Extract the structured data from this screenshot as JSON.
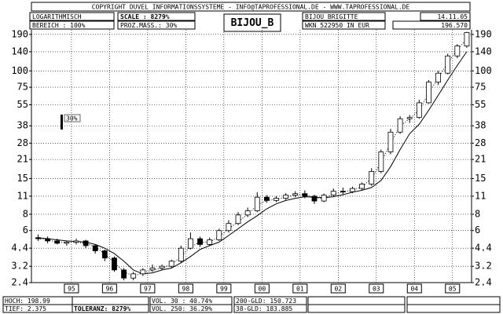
{
  "header": {
    "copyright": "COPYRIGHT  DUVEL INFORMATIONSSYSTEME - INFO@TAPROFESSIONAL.DE - WWW.TAPROFESSIONAL.DE",
    "mode": "LOGARITHMISCH",
    "range": "BEREICH :   100%",
    "scale": "SCALE : 8279%",
    "percent": "PROZ.MASS.: 30%",
    "name": "BIJOU BRIGITTE",
    "wkn": "WKN 522950   IN EUR",
    "date": "14.11.05",
    "last": "196.570"
  },
  "footer": {
    "high": "HOCH:  198.99",
    "low": "TIEF:  2.375",
    "tolerance": "TOLERANZ:  8279%",
    "vol30": "VOL. 30 : 40.74%",
    "vol250": "VOL. 250: 36.29%",
    "gld200": "200-GLD: 150.723",
    "gld38": "38-GLD: 183.885"
  },
  "chart_data": {
    "type": "candlestick",
    "title": "BIJOU_B",
    "log_scale": true,
    "grid": true,
    "scale_bar": {
      "value": 30,
      "label": "30%"
    },
    "x": [
      1994.625,
      1994.875,
      1995.125,
      1995.375,
      1995.625,
      1995.875,
      1996.125,
      1996.375,
      1996.625,
      1996.875,
      1997.125,
      1997.375,
      1997.625,
      1997.875,
      1998.125,
      1998.375,
      1998.625,
      1998.875,
      1999.125,
      1999.375,
      1999.625,
      1999.875,
      2000.125,
      2000.375,
      2000.625,
      2000.875,
      2001.125,
      2001.375,
      2001.625,
      2001.875,
      2002.125,
      2002.375,
      2002.625,
      2002.875,
      2003.125,
      2003.375,
      2003.625,
      2003.875,
      2004.125,
      2004.375,
      2004.625,
      2004.875,
      2005.125,
      2005.375,
      2005.625,
      2005.875
    ],
    "open": [
      5.3,
      5.2,
      5.0,
      4.8,
      4.9,
      5.0,
      4.6,
      4.2,
      3.7,
      3.0,
      2.6,
      2.8,
      3.0,
      3.1,
      3.2,
      3.5,
      4.4,
      5.2,
      4.7,
      5.1,
      6.0,
      6.8,
      7.9,
      8.5,
      10.8,
      10.2,
      10.6,
      11.2,
      11.5,
      11.0,
      10.1,
      11.2,
      12.0,
      11.9,
      12.6,
      13.6,
      17.0,
      24.0,
      34.0,
      43.0,
      44.0,
      57.0,
      82.0,
      96.0,
      130.0,
      155.0
    ],
    "high": [
      5.6,
      5.4,
      5.2,
      5.0,
      5.2,
      5.1,
      4.7,
      4.3,
      3.8,
      3.1,
      2.9,
      3.1,
      3.3,
      3.3,
      3.6,
      4.6,
      5.8,
      5.4,
      5.3,
      6.2,
      7.2,
      8.3,
      9.0,
      11.8,
      11.2,
      11.0,
      11.6,
      12.0,
      12.2,
      11.3,
      11.5,
      12.6,
      12.8,
      13.0,
      14.0,
      18.0,
      25.0,
      36.0,
      45.0,
      46.0,
      60.0,
      85.0,
      100.0,
      135.0,
      160.0,
      198.99
    ],
    "low": [
      5.0,
      4.8,
      4.7,
      4.6,
      4.7,
      4.4,
      4.0,
      3.5,
      2.9,
      2.5,
      2.5,
      2.7,
      2.9,
      3.0,
      3.1,
      3.4,
      4.3,
      4.5,
      4.6,
      5.0,
      5.8,
      6.6,
      7.6,
      8.3,
      9.8,
      9.9,
      10.3,
      10.8,
      10.6,
      9.6,
      9.9,
      11.0,
      11.4,
      11.6,
      12.2,
      13.2,
      16.5,
      23.0,
      33.0,
      40.0,
      43.0,
      56.0,
      78.0,
      94.0,
      125.0,
      150.0
    ],
    "close": [
      5.2,
      5.0,
      4.8,
      4.9,
      5.0,
      4.6,
      4.2,
      3.7,
      3.0,
      2.6,
      2.8,
      3.0,
      3.1,
      3.2,
      3.5,
      4.4,
      5.2,
      4.7,
      5.1,
      6.0,
      6.8,
      7.9,
      8.5,
      10.8,
      10.2,
      10.6,
      11.2,
      11.5,
      11.0,
      10.1,
      11.2,
      12.0,
      11.9,
      12.6,
      13.6,
      17.0,
      24.0,
      34.0,
      43.0,
      44.0,
      57.0,
      82.0,
      96.0,
      130.0,
      155.0,
      196.57
    ],
    "series": [
      {
        "color": "#000000",
        "dashed": false,
        "values": [
          5.3,
          5.2,
          5.1,
          5.0,
          4.95,
          4.9,
          4.7,
          4.4,
          4.0,
          3.5,
          3.0,
          2.8,
          2.85,
          3.0,
          3.1,
          3.4,
          3.8,
          4.3,
          4.6,
          4.9,
          5.5,
          6.2,
          7.0,
          7.8,
          8.8,
          9.6,
          10.2,
          10.6,
          10.9,
          10.8,
          10.7,
          10.9,
          11.3,
          11.8,
          12.2,
          12.8,
          14.5,
          18.5,
          25,
          33,
          39,
          50,
          65,
          85,
          110,
          140
        ]
      },
      {
        "color": "#000000",
        "dashed": true,
        "values": [
          5.2,
          5.1,
          4.9,
          4.85,
          4.9,
          4.8,
          4.5,
          4.0,
          3.4,
          2.9,
          2.7,
          2.85,
          3.0,
          3.1,
          3.3,
          3.8,
          4.5,
          4.9,
          4.9,
          5.4,
          6.2,
          7.0,
          8.0,
          9.4,
          10.2,
          10.4,
          10.8,
          11.3,
          11.3,
          10.7,
          10.6,
          11.4,
          11.9,
          12.2,
          13.0,
          15.0,
          20,
          28,
          38,
          43,
          50,
          68,
          88,
          115,
          145,
          175
        ]
      }
    ],
    "xlim": [
      1994.45,
      2006.0
    ],
    "xticks": [
      {
        "value": 1995.5,
        "label": "95"
      },
      {
        "value": 1996.5,
        "label": "96"
      },
      {
        "value": 1997.5,
        "label": "97"
      },
      {
        "value": 1998.5,
        "label": "98"
      },
      {
        "value": 1999.5,
        "label": "99"
      },
      {
        "value": 2000.5,
        "label": "00"
      },
      {
        "value": 2001.5,
        "label": "01"
      },
      {
        "value": 2002.5,
        "label": "02"
      },
      {
        "value": 2003.5,
        "label": "03"
      },
      {
        "value": 2004.5,
        "label": "04"
      },
      {
        "value": 2005.5,
        "label": "05"
      }
    ],
    "ylim": [
      2.4,
      206
    ],
    "yticks": [
      2.4,
      3.2,
      4.4,
      6,
      8,
      11,
      15,
      21,
      28,
      38,
      55,
      75,
      100,
      140,
      190
    ]
  }
}
